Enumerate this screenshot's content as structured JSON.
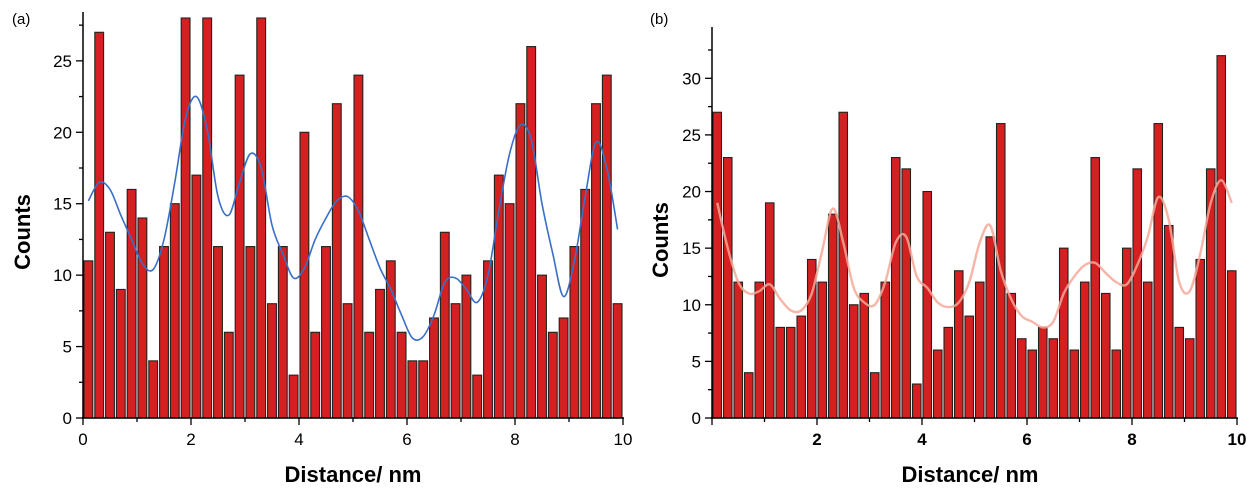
{
  "colors": {
    "bar": "#d42020",
    "bar_edge": "#222222",
    "fit_a": "#3a6fc8",
    "fit_b": "#f4a898"
  },
  "chart_data": [
    {
      "panel_label": "(a)",
      "type": "bar",
      "xlabel": "Distance/ nm",
      "ylabel": "Counts",
      "xlim": [
        0,
        10
      ],
      "ylim": [
        0,
        28
      ],
      "x_ticks": [
        "0",
        "2",
        "4",
        "6",
        "8",
        "10"
      ],
      "y_ticks": [
        "0",
        "5",
        "10",
        "15",
        "20",
        "25"
      ],
      "x": [
        0.1,
        0.3,
        0.5,
        0.7,
        0.9,
        1.1,
        1.3,
        1.5,
        1.7,
        1.9,
        2.1,
        2.3,
        2.5,
        2.7,
        2.9,
        3.1,
        3.3,
        3.5,
        3.7,
        3.9,
        4.1,
        4.3,
        4.5,
        4.7,
        4.9,
        5.1,
        5.3,
        5.5,
        5.7,
        5.9,
        6.1,
        6.3,
        6.5,
        6.7,
        6.9,
        7.1,
        7.3,
        7.5,
        7.7,
        7.9,
        8.1,
        8.3,
        8.5,
        8.7,
        8.9,
        9.1,
        9.3,
        9.5,
        9.7,
        9.9
      ],
      "values": [
        11,
        27,
        13,
        9,
        16,
        14,
        4,
        12,
        15,
        28,
        17,
        28,
        12,
        6,
        24,
        12,
        28,
        8,
        12,
        3,
        20,
        6,
        12,
        22,
        8,
        24,
        6,
        9,
        11,
        6,
        4,
        4,
        7,
        13,
        8,
        10,
        3,
        11,
        17,
        15,
        22,
        26,
        10,
        6,
        7,
        12,
        16,
        22,
        24,
        8
      ],
      "fit": {
        "x": [
          0.1,
          0.3,
          0.5,
          0.7,
          0.9,
          1.1,
          1.3,
          1.5,
          1.7,
          1.9,
          2.1,
          2.3,
          2.5,
          2.7,
          2.9,
          3.1,
          3.3,
          3.5,
          3.7,
          3.9,
          4.1,
          4.3,
          4.5,
          4.7,
          4.9,
          5.1,
          5.3,
          5.5,
          5.7,
          5.9,
          6.1,
          6.3,
          6.5,
          6.7,
          6.9,
          7.1,
          7.3,
          7.5,
          7.7,
          7.9,
          8.1,
          8.3,
          8.5,
          8.7,
          8.9,
          9.1,
          9.3,
          9.5,
          9.7,
          9.9
        ],
        "y": [
          15.2,
          16.5,
          16,
          14.2,
          12.5,
          10.8,
          10.4,
          12.5,
          16.5,
          21,
          22.5,
          20.2,
          15.5,
          14.2,
          16.5,
          18.5,
          17.5,
          13.5,
          11.5,
          9.8,
          10.5,
          12.5,
          14,
          15.2,
          15.5,
          14.5,
          12.5,
          10.5,
          9,
          7.2,
          5.6,
          5.7,
          7.2,
          9.5,
          9.8,
          9,
          8.1,
          10,
          14.5,
          18.5,
          20.5,
          19.5,
          15,
          11.5,
          8.5,
          11,
          15.5,
          19.3,
          17.5,
          13.2
        ]
      }
    },
    {
      "panel_label": "(b)",
      "type": "bar",
      "xlabel": "Distance/ nm",
      "ylabel": "Counts",
      "xlim": [
        0,
        10
      ],
      "ylim": [
        0,
        34
      ],
      "x_ticks": [
        "2",
        "4",
        "6",
        "8",
        "10"
      ],
      "y_ticks": [
        "0",
        "5",
        "10",
        "15",
        "20",
        "25",
        "30"
      ],
      "x": [
        0.1,
        0.3,
        0.5,
        0.7,
        0.9,
        1.1,
        1.3,
        1.5,
        1.7,
        1.9,
        2.1,
        2.3,
        2.5,
        2.7,
        2.9,
        3.1,
        3.3,
        3.5,
        3.7,
        3.9,
        4.1,
        4.3,
        4.5,
        4.7,
        4.9,
        5.1,
        5.3,
        5.5,
        5.7,
        5.9,
        6.1,
        6.3,
        6.5,
        6.7,
        6.9,
        7.1,
        7.3,
        7.5,
        7.7,
        7.9,
        8.1,
        8.3,
        8.5,
        8.7,
        8.9,
        9.1,
        9.3,
        9.5,
        9.7,
        9.9
      ],
      "values": [
        27,
        23,
        12,
        4,
        12,
        19,
        8,
        8,
        9,
        14,
        12,
        18,
        27,
        10,
        11,
        4,
        12,
        23,
        22,
        3,
        20,
        6,
        8,
        13,
        9,
        12,
        16,
        26,
        11,
        7,
        6,
        8,
        7,
        15,
        6,
        12,
        23,
        11,
        6,
        15,
        22,
        12,
        26,
        17,
        8,
        7,
        14,
        22,
        32,
        13
      ],
      "fit": {
        "x": [
          0.1,
          0.3,
          0.5,
          0.7,
          0.9,
          1.1,
          1.3,
          1.5,
          1.7,
          1.9,
          2.1,
          2.3,
          2.5,
          2.7,
          2.9,
          3.1,
          3.3,
          3.5,
          3.7,
          3.9,
          4.1,
          4.3,
          4.5,
          4.7,
          4.9,
          5.1,
          5.3,
          5.5,
          5.7,
          5.9,
          6.1,
          6.3,
          6.5,
          6.7,
          6.9,
          7.1,
          7.3,
          7.5,
          7.7,
          7.9,
          8.1,
          8.3,
          8.5,
          8.7,
          8.9,
          9.1,
          9.3,
          9.5,
          9.7,
          9.9
        ],
        "y": [
          19,
          15,
          12,
          11,
          11.2,
          11.8,
          10.5,
          9.5,
          9.5,
          11,
          14.8,
          18.5,
          15.5,
          11.5,
          10.2,
          10,
          12,
          15.5,
          16,
          12.5,
          11.5,
          10.2,
          9.8,
          10.2,
          12,
          15.5,
          17,
          13,
          10.5,
          9,
          8.5,
          8,
          8.5,
          11,
          12.5,
          13.5,
          13.7,
          12.8,
          12,
          11.8,
          13.5,
          16,
          19.5,
          17.5,
          12,
          11.2,
          14.5,
          19,
          21,
          19
        ]
      }
    }
  ]
}
